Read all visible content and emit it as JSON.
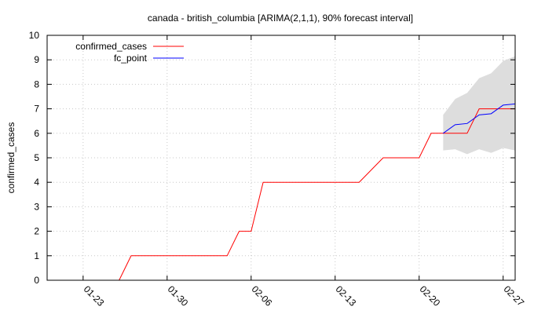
{
  "chart_data": {
    "type": "line",
    "title": "canada - british_columbia [ARIMA(2,1,1), 90% forecast interval]",
    "xlabel": "",
    "ylabel": "confirmed_cases",
    "ylim": [
      0,
      10
    ],
    "xlim": [
      "2020-01-20",
      "2020-02-28"
    ],
    "yticks": [
      0,
      1,
      2,
      3,
      4,
      5,
      6,
      7,
      8,
      9,
      10
    ],
    "xticks": [
      {
        "date": "2020-01-23",
        "label": "01-23"
      },
      {
        "date": "2020-01-30",
        "label": "01-30"
      },
      {
        "date": "2020-02-06",
        "label": "02-06"
      },
      {
        "date": "2020-02-13",
        "label": "02-13"
      },
      {
        "date": "2020-02-20",
        "label": "02-20"
      },
      {
        "date": "2020-02-27",
        "label": "02-27"
      }
    ],
    "grid": true,
    "legend_position": "top-left",
    "series": [
      {
        "name": "confirmed_cases",
        "color": "#ff0000",
        "points": [
          {
            "x": "2020-01-26",
            "y": 0
          },
          {
            "x": "2020-01-27",
            "y": 1
          },
          {
            "x": "2020-02-04",
            "y": 1
          },
          {
            "x": "2020-02-05",
            "y": 2
          },
          {
            "x": "2020-02-06",
            "y": 2
          },
          {
            "x": "2020-02-07",
            "y": 4
          },
          {
            "x": "2020-02-15",
            "y": 4
          },
          {
            "x": "2020-02-17",
            "y": 5
          },
          {
            "x": "2020-02-20",
            "y": 5
          },
          {
            "x": "2020-02-21",
            "y": 6
          },
          {
            "x": "2020-02-24",
            "y": 6
          },
          {
            "x": "2020-02-25",
            "y": 7
          },
          {
            "x": "2020-02-28",
            "y": 7
          }
        ]
      },
      {
        "name": "fc_point",
        "color": "#0000ff",
        "points": [
          {
            "x": "2020-02-22",
            "y": 6.0
          },
          {
            "x": "2020-02-23",
            "y": 6.35
          },
          {
            "x": "2020-02-24",
            "y": 6.4
          },
          {
            "x": "2020-02-25",
            "y": 6.75
          },
          {
            "x": "2020-02-26",
            "y": 6.8
          },
          {
            "x": "2020-02-27",
            "y": 7.15
          },
          {
            "x": "2020-02-28",
            "y": 7.2
          }
        ]
      }
    ],
    "forecast_interval": {
      "level": "90%",
      "color": "#dddddd",
      "points": [
        {
          "x": "2020-02-22",
          "lo": 5.3,
          "hi": 6.75
        },
        {
          "x": "2020-02-23",
          "lo": 5.35,
          "hi": 7.4
        },
        {
          "x": "2020-02-24",
          "lo": 5.15,
          "hi": 7.65
        },
        {
          "x": "2020-02-25",
          "lo": 5.35,
          "hi": 8.25
        },
        {
          "x": "2020-02-26",
          "lo": 5.2,
          "hi": 8.45
        },
        {
          "x": "2020-02-27",
          "lo": 5.4,
          "hi": 8.95
        },
        {
          "x": "2020-02-28",
          "lo": 5.3,
          "hi": 9.15
        }
      ]
    }
  }
}
